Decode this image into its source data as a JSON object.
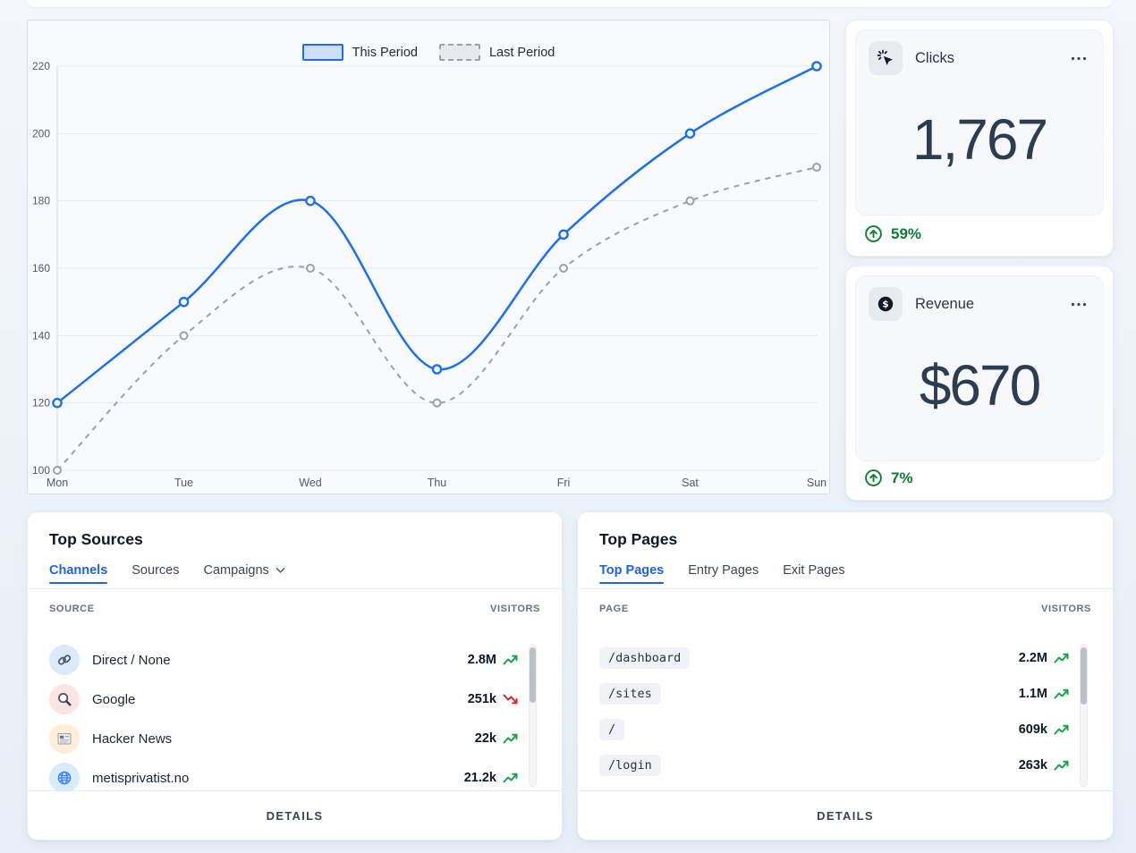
{
  "chart_data": {
    "type": "line",
    "x": [
      "Mon",
      "Tue",
      "Wed",
      "Thu",
      "Fri",
      "Sat",
      "Sun"
    ],
    "series": [
      {
        "name": "This Period",
        "values": [
          120,
          150,
          180,
          130,
          170,
          200,
          220
        ],
        "color": "#1d6ff2",
        "style": "solid"
      },
      {
        "name": "Last Period",
        "values": [
          100,
          140,
          160,
          120,
          160,
          180,
          190
        ],
        "color": "#9aa1ab",
        "style": "dashed"
      }
    ],
    "yticks": [
      100,
      120,
      140,
      160,
      180,
      200,
      220
    ],
    "ylim": [
      100,
      220
    ],
    "grid": true,
    "legend_position": "top"
  },
  "stat_cards": [
    {
      "icon": "cursor-click",
      "title": "Clicks",
      "value": "1,767",
      "change": "59%",
      "trend": "up"
    },
    {
      "icon": "dollar",
      "title": "Revenue",
      "value": "$670",
      "change": "7%",
      "trend": "up"
    }
  ],
  "top_sources": {
    "title": "Top Sources",
    "tabs": [
      {
        "label": "Channels",
        "active": true
      },
      {
        "label": "Sources",
        "active": false
      },
      {
        "label": "Campaigns",
        "active": false,
        "has_chevron": true
      }
    ],
    "columns": [
      "SOURCE",
      "VISITORS"
    ],
    "rows": [
      {
        "icon": "link",
        "icon_bg": "#dce9fb",
        "name": "Direct / None",
        "visitors": "2.8M",
        "trend": "up"
      },
      {
        "icon": "magnifier",
        "icon_bg": "#fce4e4",
        "name": "Google",
        "visitors": "251k",
        "trend": "down"
      },
      {
        "icon": "newspaper",
        "icon_bg": "#fdeeda",
        "name": "Hacker News",
        "visitors": "22k",
        "trend": "up"
      },
      {
        "icon": "globe",
        "icon_bg": "#d9edf8",
        "name": "metisprivatist.no",
        "visitors": "21.2k",
        "trend": "up"
      }
    ],
    "details_label": "DETAILS"
  },
  "top_pages": {
    "title": "Top Pages",
    "tabs": [
      {
        "label": "Top Pages",
        "active": true
      },
      {
        "label": "Entry Pages",
        "active": false
      },
      {
        "label": "Exit Pages",
        "active": false
      }
    ],
    "columns": [
      "PAGE",
      "VISITORS"
    ],
    "rows": [
      {
        "path": "/dashboard",
        "visitors": "2.2M",
        "trend": "up"
      },
      {
        "path": "/sites",
        "visitors": "1.1M",
        "trend": "up"
      },
      {
        "path": "/",
        "visitors": "609k",
        "trend": "up"
      },
      {
        "path": "/login",
        "visitors": "263k",
        "trend": "up"
      }
    ],
    "details_label": "DETAILS"
  },
  "colors": {
    "accent_blue": "#2160e8",
    "trend_up": "#16a34a",
    "trend_down": "#dc2626",
    "change_green": "#0c7a33",
    "grid": "#e6eaf1",
    "axis_text": "#4f5a6b"
  }
}
